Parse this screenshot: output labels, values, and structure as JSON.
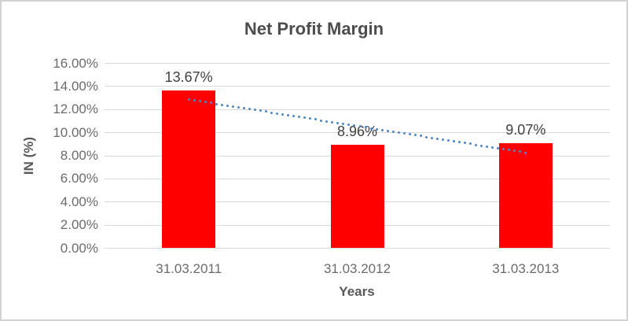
{
  "chart_data": {
    "type": "bar",
    "title": "Net Profit Margin",
    "xlabel": "Years",
    "ylabel": "IN (%)",
    "categories": [
      "31.03.2011",
      "31.03.2012",
      "31.03.2013"
    ],
    "values": [
      13.67,
      8.96,
      9.07
    ],
    "data_labels": [
      "13.67%",
      "8.96%",
      "9.07%"
    ],
    "value_unit": "percent",
    "ylim": [
      0,
      16
    ],
    "ytick_step": 2,
    "yticks": [
      {
        "value": 16,
        "label": "16.00%"
      },
      {
        "value": 14,
        "label": "14.00%"
      },
      {
        "value": 12,
        "label": "12.00%"
      },
      {
        "value": 10,
        "label": "10.00%"
      },
      {
        "value": 8,
        "label": "8.00%"
      },
      {
        "value": 6,
        "label": "6.00%"
      },
      {
        "value": 4,
        "label": "4.00%"
      },
      {
        "value": 2,
        "label": "2.00%"
      },
      {
        "value": 0,
        "label": "0.00%"
      }
    ],
    "grid": true,
    "legend": "none",
    "trendline": {
      "type": "linear",
      "style": "dotted",
      "from_category_index": 0,
      "to_category_index": 2,
      "from_value": 12.87,
      "to_value": 8.27
    },
    "colors": {
      "bar": "#FF0000",
      "trendline": "#4E87C9",
      "gridline": "#D9D9D9",
      "axis_text": "#6B6B6B",
      "axis_title_text": "#595959",
      "title_text": "#4D4D4D",
      "label_text": "#404040",
      "border": "#D2D2D2"
    }
  }
}
